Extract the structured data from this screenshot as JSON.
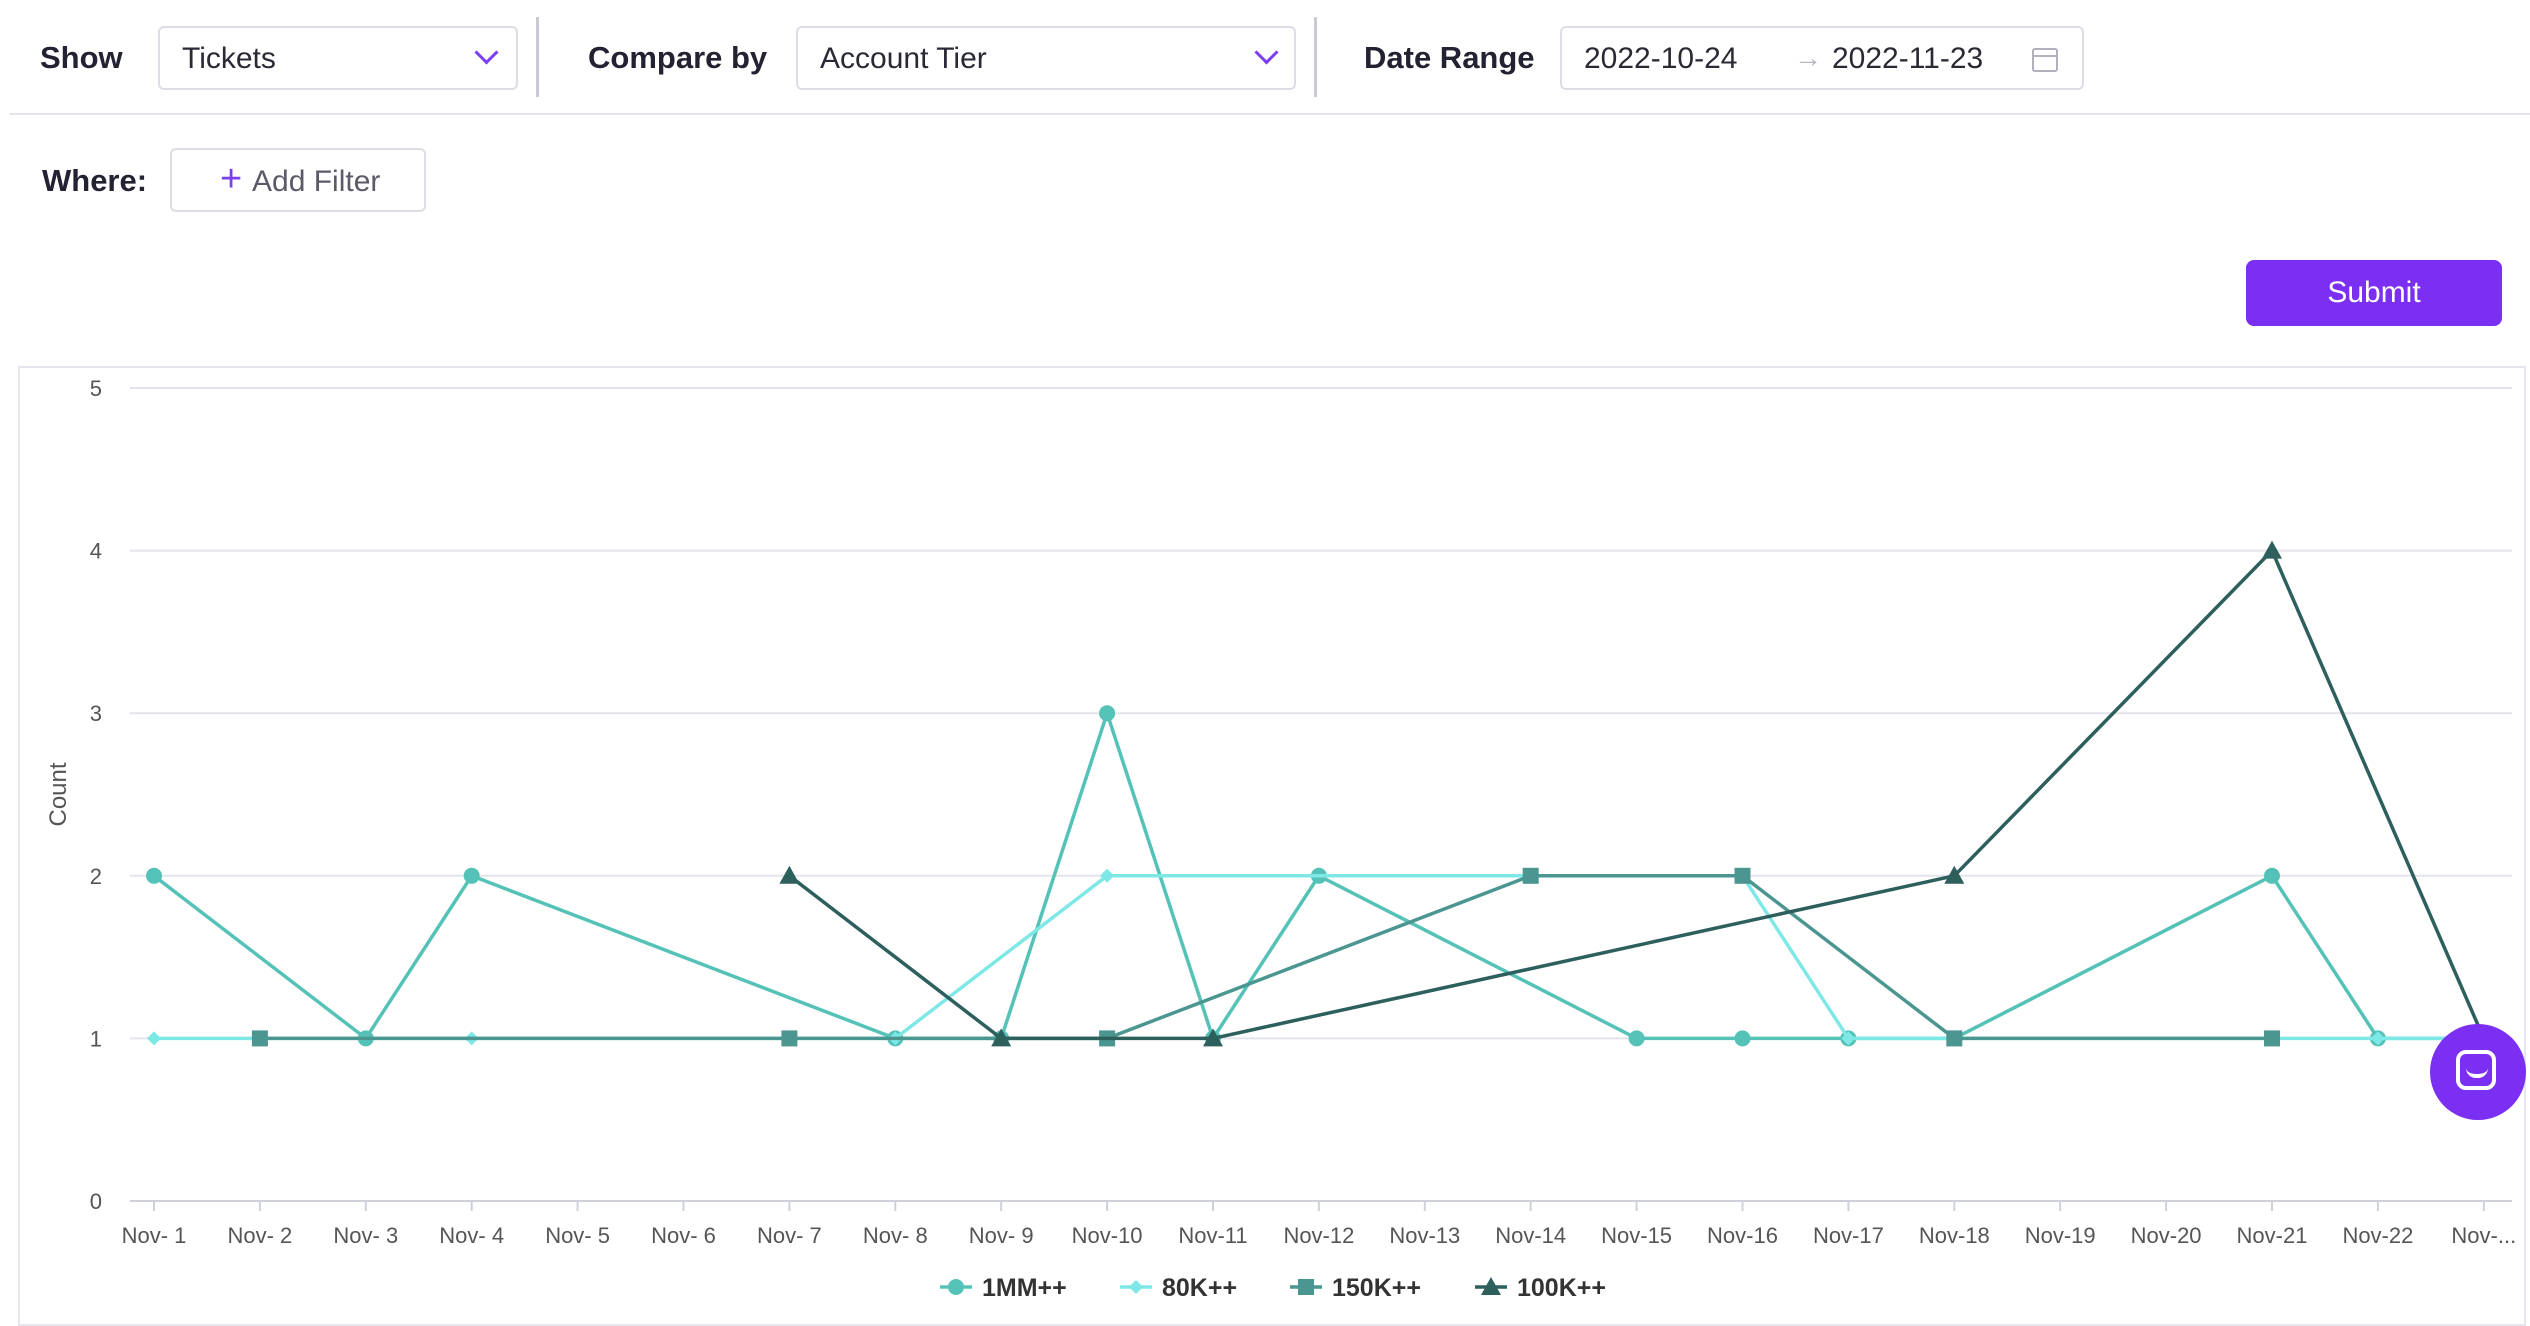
{
  "filters": {
    "show_label": "Show",
    "show_value": "Tickets",
    "compare_label": "Compare by",
    "compare_value": "Account Tier",
    "date_label": "Date Range",
    "date_start": "2022-10-24",
    "date_end": "2022-11-23",
    "where_label": "Where:",
    "add_filter_label": "Add Filter",
    "submit_label": "Submit"
  },
  "colors": {
    "accent": "#7b2ff2",
    "series": [
      "#55c2b7",
      "#7de8e6",
      "#4b9690",
      "#2d5f5d"
    ]
  },
  "icons": [
    "chevron-down-icon",
    "arrow-right-icon",
    "calendar-icon",
    "plus-icon",
    "chat-icon"
  ],
  "chart_data": {
    "type": "line",
    "ylabel": "Count",
    "xlabel": "",
    "ylim": [
      0,
      5
    ],
    "yticks": [
      0,
      1,
      2,
      3,
      4,
      5
    ],
    "grid": true,
    "legend_position": "bottom",
    "categories": [
      "Nov- 1",
      "Nov- 2",
      "Nov- 3",
      "Nov- 4",
      "Nov- 5",
      "Nov- 6",
      "Nov- 7",
      "Nov- 8",
      "Nov- 9",
      "Nov-10",
      "Nov-11",
      "Nov-12",
      "Nov-13",
      "Nov-14",
      "Nov-15",
      "Nov-16",
      "Nov-17",
      "Nov-18",
      "Nov-19",
      "Nov-20",
      "Nov-21",
      "Nov-22",
      "Nov-..."
    ],
    "series": [
      {
        "name": "1MM++",
        "marker": "circle",
        "color": "#55c2b7",
        "points": [
          [
            0,
            2
          ],
          [
            2,
            1
          ],
          [
            3,
            2
          ],
          [
            7,
            1
          ],
          [
            8,
            1
          ],
          [
            9,
            3
          ],
          [
            10,
            1
          ],
          [
            11,
            2
          ],
          [
            14,
            1
          ],
          [
            15,
            1
          ],
          [
            16,
            1
          ],
          [
            17,
            1
          ],
          [
            20,
            2
          ],
          [
            21,
            1
          ],
          [
            22,
            1
          ]
        ]
      },
      {
        "name": "80K++",
        "marker": "diamond",
        "color": "#7de8e6",
        "points": [
          [
            0,
            1
          ],
          [
            3,
            1
          ],
          [
            7,
            1
          ],
          [
            9,
            2
          ],
          [
            13,
            2
          ],
          [
            15,
            2
          ],
          [
            16,
            1
          ],
          [
            21,
            1
          ],
          [
            22,
            1
          ]
        ]
      },
      {
        "name": "150K++",
        "marker": "square",
        "color": "#4b9690",
        "points": [
          [
            1,
            1
          ],
          [
            6,
            1
          ],
          [
            9,
            1
          ],
          [
            13,
            2
          ],
          [
            15,
            2
          ],
          [
            17,
            1
          ],
          [
            20,
            1
          ]
        ]
      },
      {
        "name": "100K++",
        "marker": "triangle",
        "color": "#2d5f5d",
        "points": [
          [
            6,
            2
          ],
          [
            8,
            1
          ],
          [
            10,
            1
          ],
          [
            17,
            2
          ],
          [
            20,
            4
          ],
          [
            22,
            1
          ]
        ]
      }
    ]
  }
}
